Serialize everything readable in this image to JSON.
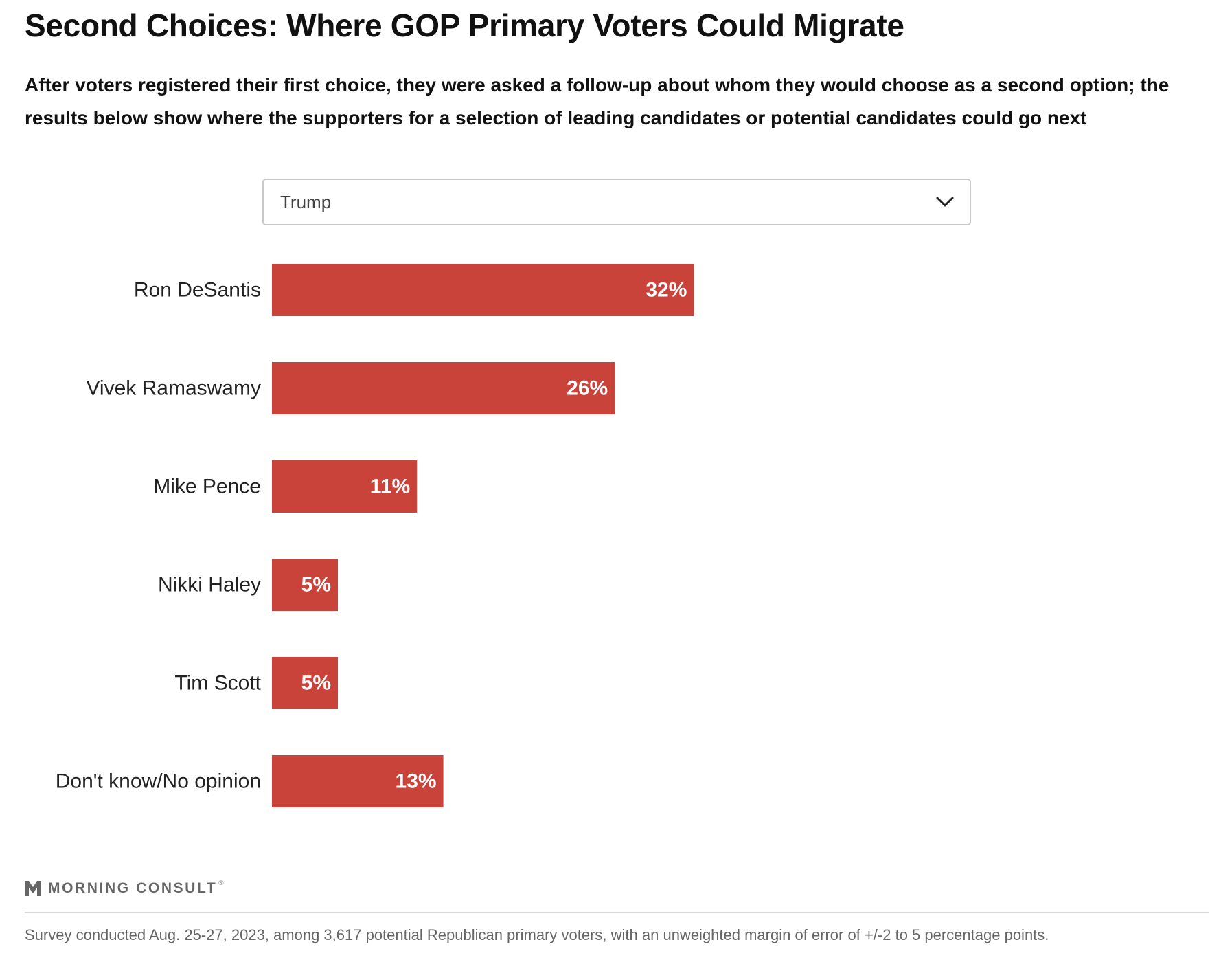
{
  "title": "Second Choices: Where GOP Primary Voters Could Migrate",
  "subtitle": "After voters registered their first choice, they were asked a follow-up about whom they would choose as a second option; the results below show where the supporters for a selection of leading candidates or potential candidates could go next",
  "dropdown": {
    "selected": "Trump",
    "icon": "chevron-down-icon"
  },
  "chart_data": {
    "type": "bar",
    "orientation": "horizontal",
    "categories": [
      "Ron DeSantis",
      "Vivek Ramaswamy",
      "Mike Pence",
      "Nikki Haley",
      "Tim Scott",
      "Don't know/No opinion"
    ],
    "values": [
      32,
      26,
      11,
      5,
      5,
      13
    ],
    "value_labels": [
      "32%",
      "26%",
      "11%",
      "5%",
      "5%",
      "13%"
    ],
    "xlim": [
      0,
      100
    ],
    "bar_color": "#c9433b",
    "grid": false,
    "legend": "none"
  },
  "brand": {
    "name": "MORNING CONSULT",
    "mark": "®"
  },
  "footnote": "Survey conducted Aug. 25-27, 2023, among 3,617 potential Republican primary voters, with an unweighted margin of error of +/-2 to 5 percentage points."
}
